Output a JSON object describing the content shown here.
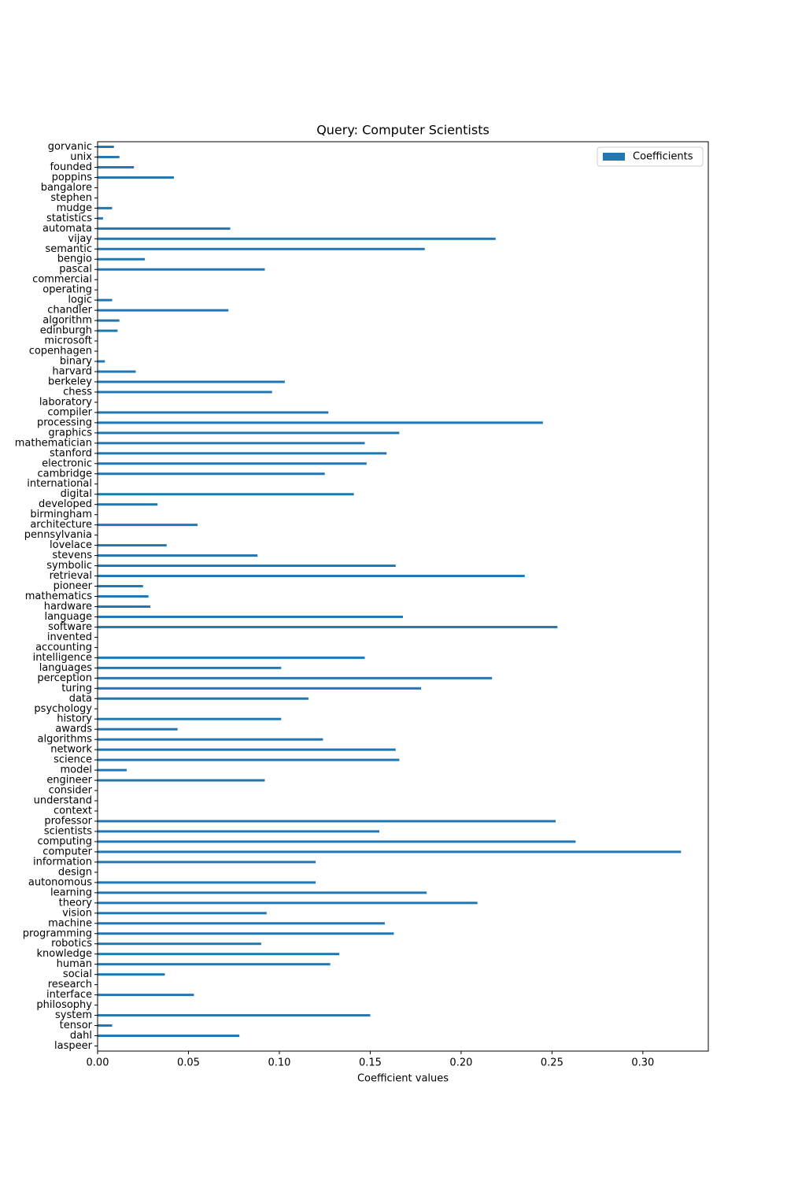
{
  "chart_data": {
    "type": "barh",
    "title": "Query: Computer Scientists",
    "xlabel": "Coefficient values",
    "categories": [
      "laspeer",
      "dahl",
      "tensor",
      "system",
      "philosophy",
      "interface",
      "research",
      "social",
      "human",
      "knowledge",
      "robotics",
      "programming",
      "machine",
      "vision",
      "theory",
      "learning",
      "autonomous",
      "design",
      "information",
      "computer",
      "computing",
      "scientists",
      "professor",
      "context",
      "understand",
      "consider",
      "engineer",
      "model",
      "science",
      "network",
      "algorithms",
      "awards",
      "history",
      "psychology",
      "data",
      "turing",
      "perception",
      "languages",
      "intelligence",
      "accounting",
      "invented",
      "software",
      "language",
      "hardware",
      "mathematics",
      "pioneer",
      "retrieval",
      "symbolic",
      "stevens",
      "lovelace",
      "pennsylvania",
      "architecture",
      "birmingham",
      "developed",
      "digital",
      "international",
      "cambridge",
      "electronic",
      "stanford",
      "mathematician",
      "graphics",
      "processing",
      "compiler",
      "laboratory",
      "chess",
      "berkeley",
      "harvard",
      "binary",
      "copenhagen",
      "microsoft",
      "edinburgh",
      "algorithm",
      "chandler",
      "logic",
      "operating",
      "commercial",
      "pascal",
      "bengio",
      "semantic",
      "vijay",
      "automata",
      "statistics",
      "mudge",
      "stephen",
      "bangalore",
      "poppins",
      "founded",
      "unix",
      "gorvanic"
    ],
    "series": [
      {
        "name": "Coefficients",
        "color": "#1f77b4",
        "values": [
          0,
          0.078,
          0.008,
          0.15,
          0,
          0.053,
          0,
          0.037,
          0.128,
          0.133,
          0.09,
          0.163,
          0.158,
          0.093,
          0.209,
          0.181,
          0.12,
          0,
          0.12,
          0.321,
          0.263,
          0.155,
          0.252,
          0,
          0,
          0,
          0.092,
          0.016,
          0.166,
          0.164,
          0.124,
          0.044,
          0.101,
          0,
          0.116,
          0.178,
          0.217,
          0.101,
          0.147,
          0,
          0,
          0.253,
          0.168,
          0.029,
          0.028,
          0.025,
          0.235,
          0.164,
          0.088,
          0.038,
          0,
          0.055,
          0,
          0.033,
          0.141,
          0,
          0.125,
          0.148,
          0.159,
          0.147,
          0.166,
          0.245,
          0.127,
          0,
          0.096,
          0.103,
          0.021,
          0.004,
          0,
          0,
          0.011,
          0.012,
          0.072,
          0.008,
          0,
          0,
          0.092,
          0.026,
          0.18,
          0.219,
          0.073,
          0.003,
          0.008,
          0,
          0,
          0.042,
          0.02,
          0.012,
          0.009
        ]
      }
    ],
    "xlim": [
      0,
      0.336
    ],
    "xticks": [
      {
        "value": 0,
        "label": "0.00"
      },
      {
        "value": 0.05,
        "label": "0.05"
      },
      {
        "value": 0.1,
        "label": "0.10"
      },
      {
        "value": 0.15,
        "label": "0.15"
      },
      {
        "value": 0.2,
        "label": "0.20"
      },
      {
        "value": 0.25,
        "label": "0.25"
      },
      {
        "value": 0.3,
        "label": "0.30"
      }
    ],
    "legend": "upper right"
  }
}
